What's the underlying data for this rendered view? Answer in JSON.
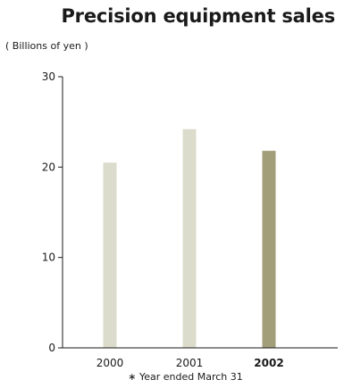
{
  "chart_data": {
    "type": "bar",
    "title": "Precision equipment sales",
    "ylabel": "( Billions of yen )",
    "categories": [
      "2000",
      "2001",
      "2002"
    ],
    "highlight": "2002",
    "values": [
      20.5,
      24.2,
      21.8
    ],
    "ylim": [
      0,
      30
    ],
    "yticks": [
      0,
      10,
      20,
      30
    ],
    "grid": false,
    "colors": {
      "bar": "#dcdccc",
      "highlight": "#a39e7a",
      "axis": "#1a1a1a"
    },
    "footnote": "∗ Year ended March 31"
  }
}
